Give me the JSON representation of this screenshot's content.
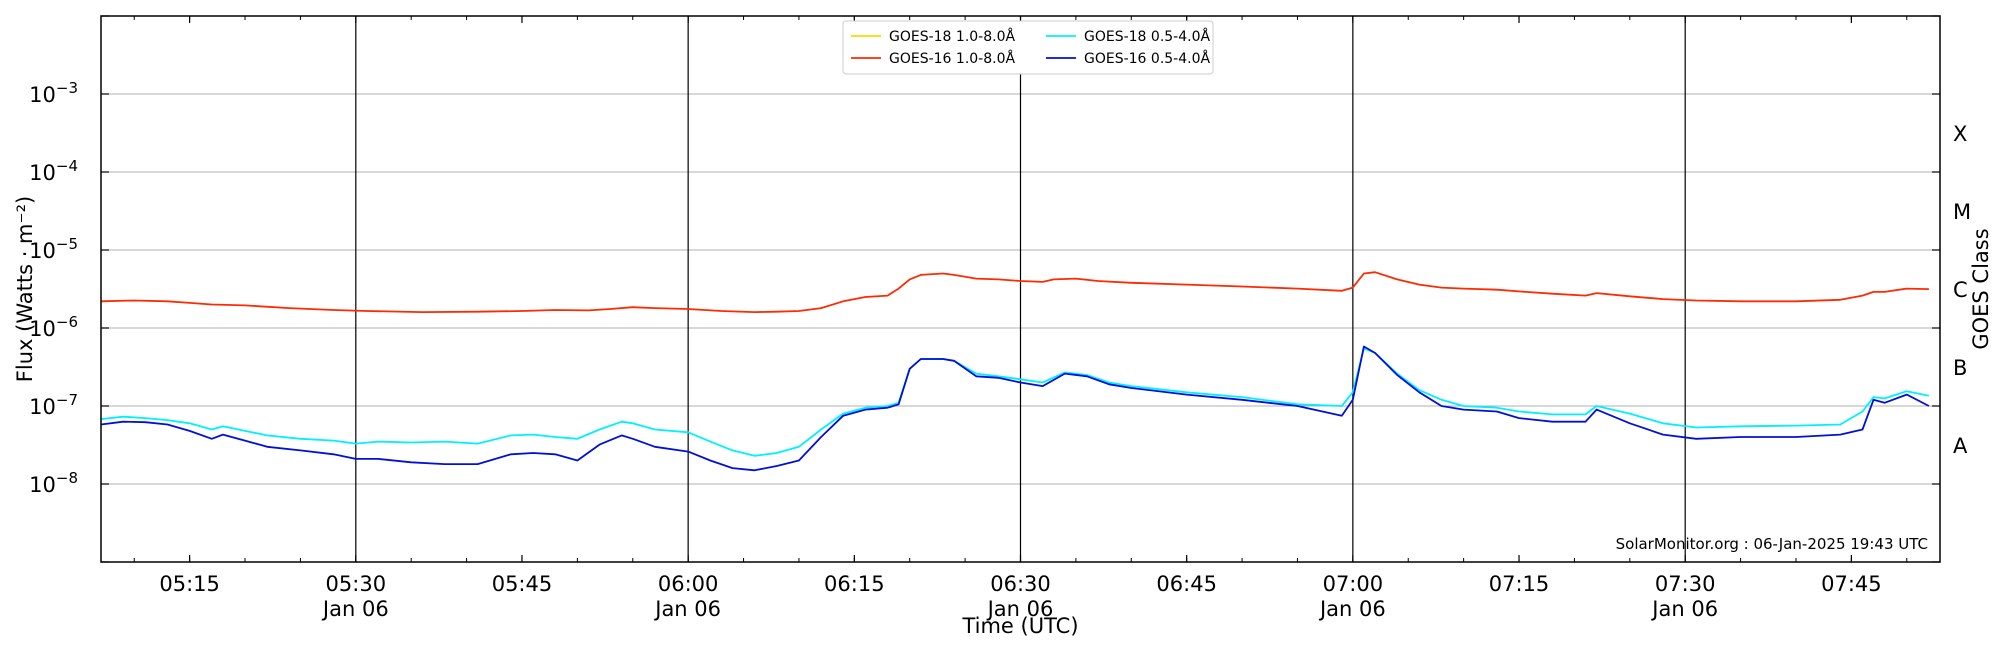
{
  "chart_data": {
    "type": "line",
    "xlabel": "Time (UTC)",
    "ylabel": "Flux (Watts · m⁻²)",
    "ylabel_right": "GOES Class",
    "yscale": "log",
    "xlim": [
      "05:07",
      "07:53"
    ],
    "ylim": [
      1e-09,
      0.01
    ],
    "x_tick_labels": [
      {
        "x": "05:15",
        "lines": [
          "05:15"
        ]
      },
      {
        "x": "05:30",
        "lines": [
          "05:30",
          "Jan 06"
        ]
      },
      {
        "x": "05:45",
        "lines": [
          "05:45"
        ]
      },
      {
        "x": "06:00",
        "lines": [
          "06:00",
          "Jan 06"
        ]
      },
      {
        "x": "06:15",
        "lines": [
          "06:15"
        ]
      },
      {
        "x": "06:30",
        "lines": [
          "06:30",
          "Jan 06"
        ]
      },
      {
        "x": "06:45",
        "lines": [
          "06:45"
        ]
      },
      {
        "x": "07:00",
        "lines": [
          "07:00",
          "Jan 06"
        ]
      },
      {
        "x": "07:15",
        "lines": [
          "07:15"
        ]
      },
      {
        "x": "07:30",
        "lines": [
          "07:30",
          "Jan 06"
        ]
      },
      {
        "x": "07:45",
        "lines": [
          "07:45"
        ]
      }
    ],
    "vlines": [
      "05:30",
      "06:00",
      "06:30",
      "07:00",
      "07:30"
    ],
    "y_tick_labels": [
      {
        "value": 0.001,
        "base": "10",
        "exp": "−3"
      },
      {
        "value": 0.0001,
        "base": "10",
        "exp": "−4"
      },
      {
        "value": 1e-05,
        "base": "10",
        "exp": "−5"
      },
      {
        "value": 1e-06,
        "base": "10",
        "exp": "−6"
      },
      {
        "value": 1e-07,
        "base": "10",
        "exp": "−7"
      },
      {
        "value": 1e-08,
        "base": "10",
        "exp": "−8"
      }
    ],
    "grid": "horizontal",
    "goes_classes": [
      {
        "label": "X",
        "value": 0.000316
      },
      {
        "label": "M",
        "value": 3.16e-05
      },
      {
        "label": "C",
        "value": 3.16e-06
      },
      {
        "label": "B",
        "value": 3.16e-07
      },
      {
        "label": "A",
        "value": 3.16e-08
      }
    ],
    "legend_position": "top-center",
    "credit": "SolarMonitor.org : 06-Jan-2025 19:43 UTC",
    "series": [
      {
        "name": "GOES-18 1.0-8.0Å",
        "color": "#ffd700",
        "x": [],
        "y": []
      },
      {
        "name": "GOES-16 1.0-8.0Å",
        "color": "#ff2a00",
        "x": [
          "05:07",
          "05:10",
          "05:13",
          "05:15",
          "05:17",
          "05:20",
          "05:24",
          "05:28",
          "05:31",
          "05:36",
          "05:41",
          "05:45",
          "05:48",
          "05:51",
          "05:53",
          "05:55",
          "05:57",
          "06:00",
          "06:03",
          "06:06",
          "06:08",
          "06:10",
          "06:12",
          "06:14",
          "06:16",
          "06:18",
          "06:19",
          "06:20",
          "06:21",
          "06:23",
          "06:24",
          "06:26",
          "06:28",
          "06:30",
          "06:32",
          "06:33",
          "06:35",
          "06:37",
          "06:40",
          "06:45",
          "06:50",
          "06:55",
          "06:59",
          "07:00",
          "07:01",
          "07:02",
          "07:04",
          "07:06",
          "07:08",
          "07:10",
          "07:13",
          "07:15",
          "07:18",
          "07:21",
          "07:22",
          "07:25",
          "07:28",
          "07:31",
          "07:35",
          "07:40",
          "07:44",
          "07:46",
          "07:47",
          "07:48",
          "07:50",
          "07:52"
        ],
        "y": [
          2.2e-06,
          2.25e-06,
          2.2e-06,
          2.1e-06,
          2e-06,
          1.95e-06,
          1.8e-06,
          1.7e-06,
          1.65e-06,
          1.6e-06,
          1.62e-06,
          1.65e-06,
          1.7e-06,
          1.68e-06,
          1.75e-06,
          1.85e-06,
          1.8e-06,
          1.75e-06,
          1.65e-06,
          1.6e-06,
          1.62e-06,
          1.65e-06,
          1.8e-06,
          2.2e-06,
          2.5e-06,
          2.6e-06,
          3.2e-06,
          4.2e-06,
          4.8e-06,
          5e-06,
          4.8e-06,
          4.3e-06,
          4.2e-06,
          4e-06,
          3.9e-06,
          4.2e-06,
          4.3e-06,
          4e-06,
          3.8e-06,
          3.6e-06,
          3.4e-06,
          3.2e-06,
          3e-06,
          3.3e-06,
          5e-06,
          5.2e-06,
          4.2e-06,
          3.6e-06,
          3.3e-06,
          3.2e-06,
          3.1e-06,
          2.95e-06,
          2.75e-06,
          2.6e-06,
          2.8e-06,
          2.55e-06,
          2.35e-06,
          2.25e-06,
          2.2e-06,
          2.2e-06,
          2.3e-06,
          2.6e-06,
          2.9e-06,
          2.9e-06,
          3.2e-06,
          3.15e-06
        ]
      },
      {
        "name": "GOES-18 0.5-4.0Å",
        "color": "#00f0ff",
        "x": [
          "05:07",
          "05:09",
          "05:11",
          "05:13",
          "05:15",
          "05:17",
          "05:18",
          "05:20",
          "05:22",
          "05:25",
          "05:28",
          "05:30",
          "05:32",
          "05:35",
          "05:38",
          "05:41",
          "05:44",
          "05:46",
          "05:48",
          "05:50",
          "05:52",
          "05:54",
          "05:55",
          "05:57",
          "06:00",
          "06:02",
          "06:04",
          "06:06",
          "06:08",
          "06:10",
          "06:12",
          "06:14",
          "06:16",
          "06:18",
          "06:19",
          "06:20",
          "06:21",
          "06:23",
          "06:24",
          "06:26",
          "06:28",
          "06:30",
          "06:32",
          "06:34",
          "06:36",
          "06:38",
          "06:40",
          "06:45",
          "06:50",
          "06:55",
          "06:59",
          "07:00",
          "07:01",
          "07:02",
          "07:04",
          "07:06",
          "07:08",
          "07:10",
          "07:13",
          "07:15",
          "07:18",
          "07:21",
          "07:22",
          "07:25",
          "07:28",
          "07:31",
          "07:35",
          "07:40",
          "07:44",
          "07:46",
          "07:47",
          "07:48",
          "07:50",
          "07:52"
        ],
        "y": [
          6.8e-08,
          7.3e-08,
          7e-08,
          6.6e-08,
          6e-08,
          5e-08,
          5.5e-08,
          4.8e-08,
          4.2e-08,
          3.8e-08,
          3.6e-08,
          3.3e-08,
          3.5e-08,
          3.4e-08,
          3.5e-08,
          3.3e-08,
          4.2e-08,
          4.3e-08,
          4e-08,
          3.8e-08,
          5e-08,
          6.3e-08,
          6e-08,
          5e-08,
          4.6e-08,
          3.5e-08,
          2.7e-08,
          2.3e-08,
          2.5e-08,
          3e-08,
          5e-08,
          8e-08,
          9.5e-08,
          1e-07,
          1.1e-07,
          3e-07,
          4e-07,
          4e-07,
          3.8e-07,
          2.6e-07,
          2.4e-07,
          2.2e-07,
          2e-07,
          2.7e-07,
          2.5e-07,
          2e-07,
          1.8e-07,
          1.5e-07,
          1.3e-07,
          1.05e-07,
          1e-07,
          1.5e-07,
          5.5e-07,
          4.8e-07,
          2.6e-07,
          1.6e-07,
          1.2e-07,
          1e-07,
          9.5e-08,
          8.5e-08,
          7.8e-08,
          7.8e-08,
          1e-07,
          8e-08,
          6e-08,
          5.3e-08,
          5.5e-08,
          5.6e-08,
          5.8e-08,
          8.5e-08,
          1.3e-07,
          1.25e-07,
          1.55e-07,
          1.35e-07
        ]
      },
      {
        "name": "GOES-16 0.5-4.0Å",
        "color": "#0010d8",
        "x": [
          "05:07",
          "05:09",
          "05:11",
          "05:13",
          "05:15",
          "05:17",
          "05:18",
          "05:20",
          "05:22",
          "05:25",
          "05:28",
          "05:30",
          "05:32",
          "05:35",
          "05:38",
          "05:41",
          "05:44",
          "05:46",
          "05:48",
          "05:50",
          "05:52",
          "05:54",
          "05:55",
          "05:57",
          "06:00",
          "06:02",
          "06:04",
          "06:06",
          "06:08",
          "06:10",
          "06:12",
          "06:14",
          "06:16",
          "06:18",
          "06:19",
          "06:20",
          "06:21",
          "06:23",
          "06:24",
          "06:26",
          "06:28",
          "06:30",
          "06:32",
          "06:34",
          "06:36",
          "06:38",
          "06:40",
          "06:45",
          "06:50",
          "06:55",
          "06:59",
          "07:00",
          "07:01",
          "07:02",
          "07:04",
          "07:06",
          "07:08",
          "07:10",
          "07:13",
          "07:15",
          "07:18",
          "07:21",
          "07:22",
          "07:25",
          "07:28",
          "07:31",
          "07:35",
          "07:40",
          "07:44",
          "07:46",
          "07:47",
          "07:48",
          "07:50",
          "07:52"
        ],
        "y": [
          5.8e-08,
          6.3e-08,
          6.2e-08,
          5.8e-08,
          4.8e-08,
          3.8e-08,
          4.3e-08,
          3.6e-08,
          3e-08,
          2.7e-08,
          2.4e-08,
          2.1e-08,
          2.1e-08,
          1.9e-08,
          1.8e-08,
          1.8e-08,
          2.4e-08,
          2.5e-08,
          2.4e-08,
          2e-08,
          3.2e-08,
          4.2e-08,
          3.8e-08,
          3e-08,
          2.6e-08,
          2e-08,
          1.6e-08,
          1.5e-08,
          1.7e-08,
          2e-08,
          4e-08,
          7.5e-08,
          9e-08,
          9.5e-08,
          1.05e-07,
          3e-07,
          4e-07,
          4e-07,
          3.8e-07,
          2.4e-07,
          2.3e-07,
          2e-07,
          1.8e-07,
          2.6e-07,
          2.4e-07,
          1.9e-07,
          1.7e-07,
          1.4e-07,
          1.2e-07,
          1e-07,
          7.5e-08,
          1.2e-07,
          5.8e-07,
          4.8e-07,
          2.5e-07,
          1.5e-07,
          1e-07,
          9e-08,
          8.5e-08,
          7e-08,
          6.3e-08,
          6.3e-08,
          9e-08,
          6e-08,
          4.3e-08,
          3.8e-08,
          4e-08,
          4e-08,
          4.3e-08,
          5e-08,
          1.2e-07,
          1.1e-07,
          1.4e-07,
          1e-07
        ]
      }
    ]
  }
}
